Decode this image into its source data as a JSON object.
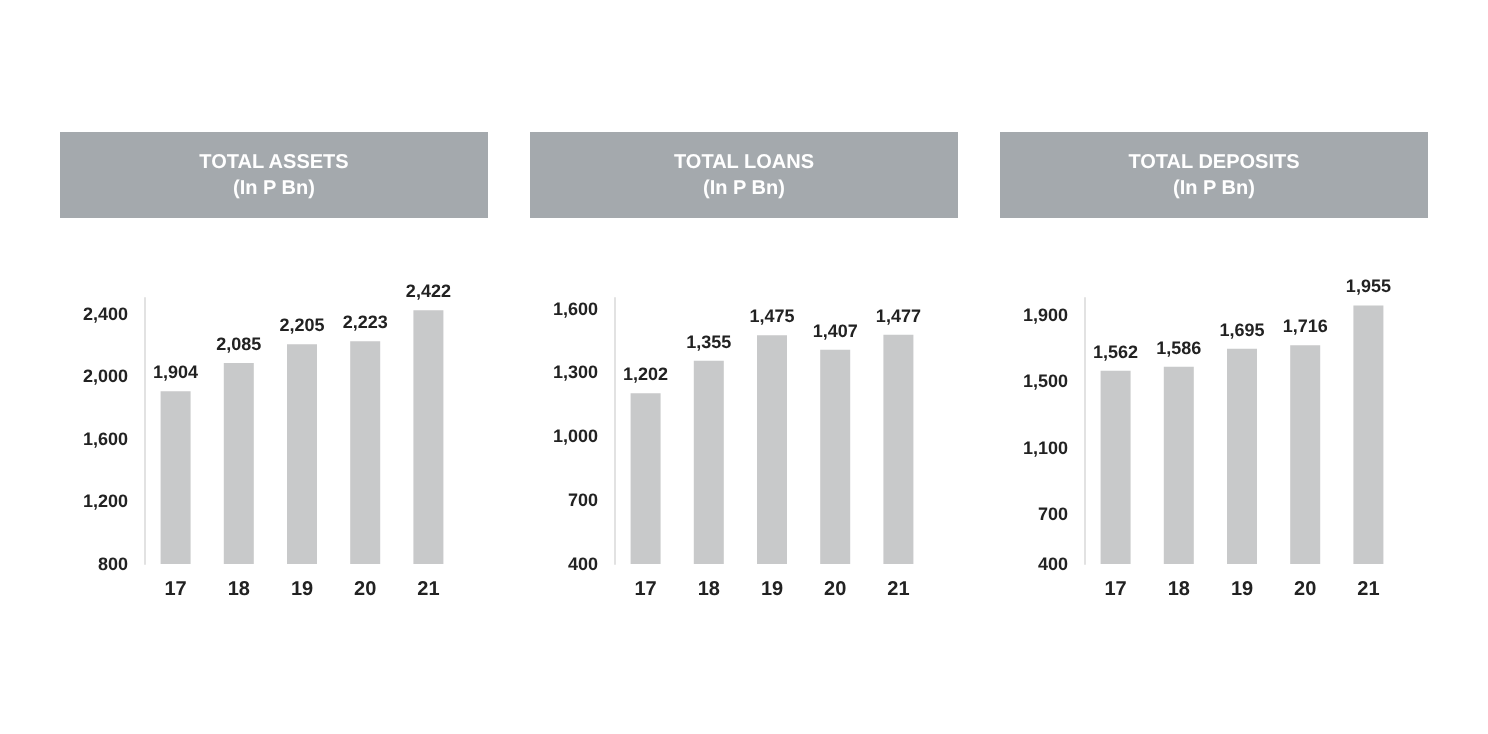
{
  "chart_data": [
    {
      "type": "bar",
      "title": "TOTAL ASSETS",
      "subtitle": "(In P Bn)",
      "categories": [
        "17",
        "18",
        "19",
        "20",
        "21"
      ],
      "values": [
        1904,
        2085,
        2205,
        2223,
        2422
      ],
      "value_labels": [
        "1,904",
        "2,085",
        "2,205",
        "2,223",
        "2,422"
      ],
      "color": "#c8c9ca",
      "ylim": [
        800,
        2500
      ],
      "yticks": [
        800,
        {
          "value": 1200,
          "label": "1,200"
        },
        {
          "value": 1600,
          "label": "1,600"
        },
        {
          "value": 2000,
          "label": "2,000"
        },
        {
          "value": 2400,
          "label": "2,400"
        }
      ],
      "grid": false
    },
    {
      "type": "bar",
      "title": "TOTAL LOANS",
      "subtitle": "(In P Bn)",
      "categories": [
        "17",
        "18",
        "19",
        "20",
        "21"
      ],
      "values": [
        1202,
        1355,
        1475,
        1407,
        1477
      ],
      "value_labels": [
        "1,202",
        "1,355",
        "1,475",
        "1,407",
        "1,477"
      ],
      "color": "#c8c9ca",
      "ylim": [
        400,
        1650
      ],
      "yticks": [
        400,
        700,
        {
          "value": 1000,
          "label": "1,000"
        },
        {
          "value": 1300,
          "label": "1,300"
        },
        {
          "value": 1600,
          "label": "1,600"
        }
      ],
      "grid": false
    },
    {
      "type": "bar",
      "title": "TOTAL DEPOSITS",
      "subtitle": "(In P Bn)",
      "categories": [
        "17",
        "18",
        "19",
        "20",
        "21"
      ],
      "values": [
        1562,
        1586,
        1695,
        1716,
        1955
      ],
      "value_labels": [
        "1,562",
        "1,586",
        "1,695",
        "1,716",
        "1,955"
      ],
      "color": "#c8c9ca",
      "ylim": [
        400,
        2000
      ],
      "yticks": [
        400,
        700,
        {
          "value": 1100,
          "label": "1,100"
        },
        {
          "value": 1500,
          "label": "1,500"
        },
        {
          "value": 1900,
          "label": "1,900"
        }
      ],
      "grid": false
    }
  ]
}
